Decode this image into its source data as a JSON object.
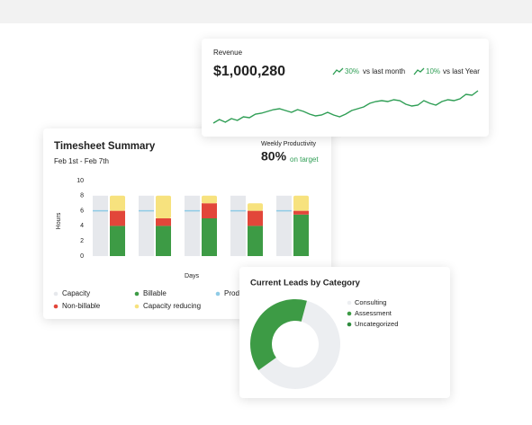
{
  "revenue_card": {
    "title": "Revenue",
    "amount": "$1,000,280",
    "trends": [
      {
        "value": "30%",
        "label": "vs last month"
      },
      {
        "value": "10%",
        "label": "vs last Year"
      }
    ],
    "chart": {
      "type": "line",
      "color": "#2f9e55",
      "ylim": [
        0,
        50
      ],
      "values": [
        13,
        17,
        14,
        18,
        16,
        20,
        19,
        23,
        24,
        26,
        28,
        29,
        27,
        25,
        28,
        26,
        23,
        21,
        22,
        25,
        22,
        20,
        23,
        27,
        29,
        31,
        35,
        37,
        38,
        37,
        39,
        38,
        34,
        32,
        33,
        38,
        35,
        33,
        37,
        39,
        38,
        40,
        45,
        44,
        49
      ]
    }
  },
  "timesheet_card": {
    "title": "Timesheet Summary",
    "date_range": "Feb 1st - Feb 7th",
    "productivity": {
      "label": "Weekly Productivity",
      "value": "80%",
      "status": "on target"
    },
    "chart": {
      "type": "bar",
      "ylabel": "Hours",
      "xlabel": "Days",
      "ylim": [
        0,
        10
      ],
      "yticks": [
        0,
        2,
        4,
        6,
        8,
        10
      ],
      "series": [
        {
          "name": "Capacity",
          "color": "#e6e8ec",
          "values": [
            8,
            8,
            8,
            8,
            8
          ]
        },
        {
          "name": "Billable",
          "color": "#3d9b45",
          "values": [
            4,
            4,
            5,
            4,
            5.5
          ]
        },
        {
          "name": "Productivity",
          "color": "#8fcbe6",
          "values": [
            6,
            6,
            6,
            6,
            6
          ]
        },
        {
          "name": "Non-billable",
          "color": "#e2463a",
          "values": [
            2,
            1,
            2,
            2,
            0.5
          ]
        },
        {
          "name": "Capacity reducing",
          "color": "#f7e27e",
          "values": [
            2,
            3,
            1,
            1,
            2
          ]
        }
      ]
    }
  },
  "leads_card": {
    "title": "Current Leads by Category",
    "chart": {
      "type": "pie",
      "categories": [
        "Consulting",
        "Assessment",
        "Uncategorized"
      ],
      "values": [
        61,
        39,
        0
      ],
      "colors": [
        "#eceef1",
        "#3d9b45",
        "#2e8b3e"
      ]
    }
  }
}
